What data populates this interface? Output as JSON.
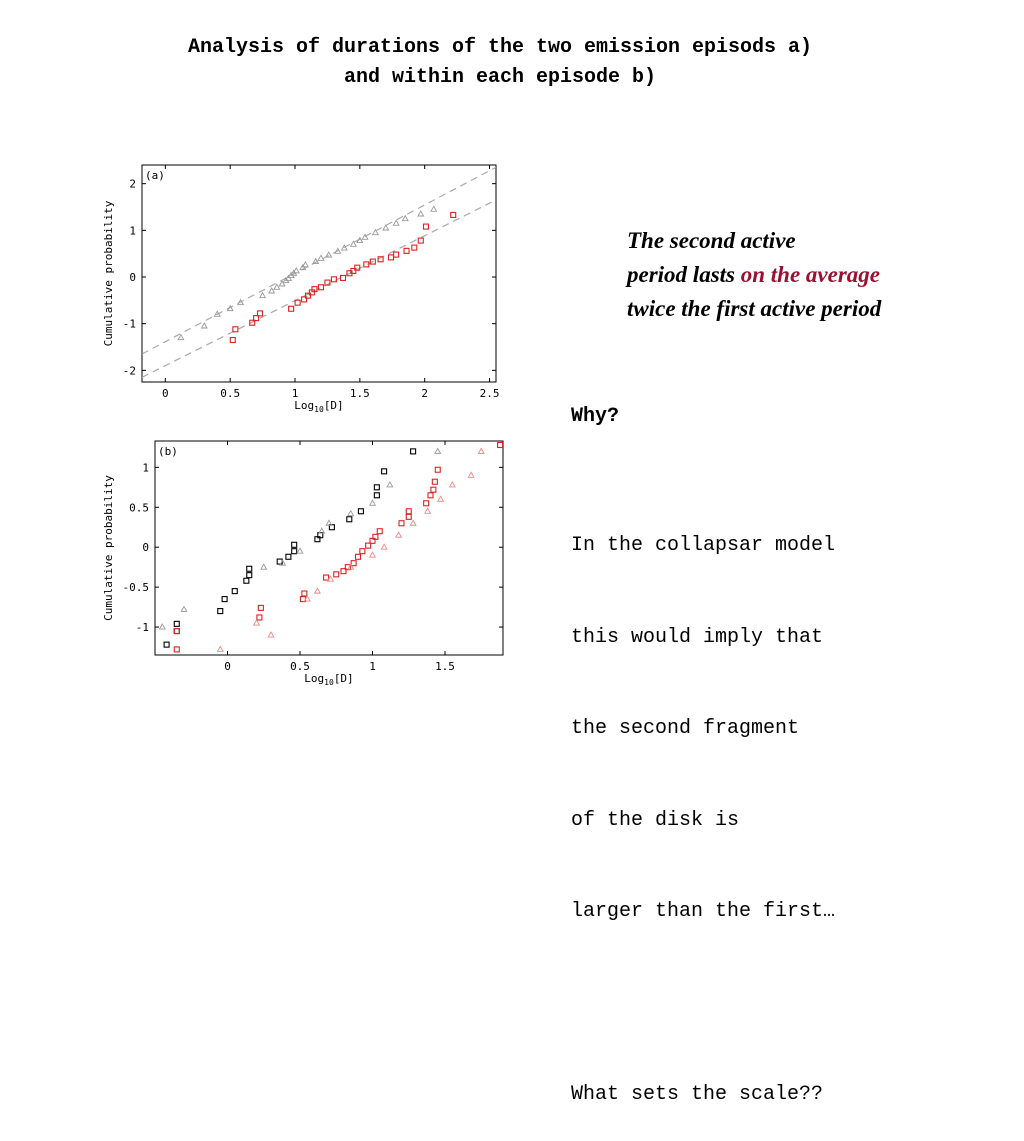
{
  "slide": {
    "title_line1": "Analysis of durations of the two emission episods a)",
    "title_line2": "and within each episode b)",
    "note_line1": "The second active",
    "note_line2_a": "period lasts ",
    "note_line2_b": "on the average",
    "note_line3": "twice the first active period",
    "why": "Why?",
    "para_lines": [
      "In the collapsar model",
      "this would imply that",
      "the second fragment",
      "of the disk is",
      "larger than the first…",
      "",
      "What sets the scale??"
    ]
  },
  "colors": {
    "red": "#dd2222",
    "pink": "#ee8888",
    "black": "#000000",
    "gray": "#999999",
    "dashed": "#aaaaaa",
    "highlight": "#9b1030"
  },
  "chart_data": [
    {
      "type": "scatter",
      "panel_label": "(a)",
      "xlabel": "Log10[D]",
      "ylabel": "Cumulative probability",
      "xlim": [
        -0.18,
        2.55
      ],
      "ylim": [
        -2.25,
        2.4
      ],
      "xticks": [
        0,
        0.5,
        1,
        1.5,
        2,
        2.5
      ],
      "xtick_labels": [
        "0",
        "0.5",
        "1",
        "1.5",
        "2",
        "2.5"
      ],
      "yticks": [
        -2,
        -1,
        0,
        1,
        2
      ],
      "ytick_labels": [
        "-2",
        "-1",
        "0",
        "1",
        "2"
      ],
      "grid": false,
      "series": [
        {
          "marker": "triangle",
          "color": "gray",
          "x": [
            0.12,
            0.3,
            0.4,
            0.5,
            0.58,
            0.75,
            0.82,
            0.86,
            0.9,
            0.93,
            0.95,
            0.97,
            0.99,
            1.01,
            1.06,
            1.08,
            1.16,
            1.2,
            1.26,
            1.33,
            1.38,
            1.45,
            1.5,
            1.54,
            1.62,
            1.7,
            1.78,
            1.85,
            1.97,
            2.07
          ],
          "y": [
            -1.3,
            -1.05,
            -0.8,
            -0.68,
            -0.55,
            -0.4,
            -0.3,
            -0.22,
            -0.15,
            -0.08,
            -0.03,
            0.03,
            0.08,
            0.13,
            0.2,
            0.26,
            0.33,
            0.4,
            0.47,
            0.55,
            0.62,
            0.7,
            0.78,
            0.85,
            0.95,
            1.05,
            1.15,
            1.25,
            1.35,
            1.45
          ]
        },
        {
          "marker": "square",
          "color": "red",
          "x": [
            0.52,
            0.54,
            0.67,
            0.7,
            0.73,
            0.97,
            1.02,
            1.07,
            1.1,
            1.13,
            1.15,
            1.2,
            1.25,
            1.3,
            1.37,
            1.42,
            1.45,
            1.48,
            1.55,
            1.6,
            1.66,
            1.74,
            1.78,
            1.86,
            1.92,
            1.97,
            2.01,
            2.22
          ],
          "y": [
            -1.35,
            -1.12,
            -0.98,
            -0.88,
            -0.78,
            -0.68,
            -0.55,
            -0.48,
            -0.4,
            -0.33,
            -0.26,
            -0.22,
            -0.12,
            -0.05,
            -0.02,
            0.08,
            0.13,
            0.2,
            0.27,
            0.33,
            0.38,
            0.42,
            0.48,
            0.56,
            0.63,
            0.78,
            1.08,
            1.33
          ]
        }
      ],
      "fits": [
        {
          "style": "dashed",
          "x": [
            -0.18,
            2.55
          ],
          "y": [
            -1.65,
            2.35
          ]
        },
        {
          "style": "dashed",
          "x": [
            -0.18,
            2.55
          ],
          "y": [
            -2.15,
            1.65
          ]
        }
      ]
    },
    {
      "type": "scatter",
      "panel_label": "(b)",
      "xlabel": "Log10[D]",
      "ylabel": "Cumulative probability",
      "xlim": [
        -0.5,
        1.9
      ],
      "ylim": [
        -1.35,
        1.33
      ],
      "xticks": [
        0,
        0.5,
        1,
        1.5
      ],
      "xtick_labels": [
        "0",
        "0.5",
        "1",
        "1.5"
      ],
      "yticks": [
        -1,
        -0.5,
        0,
        0.5,
        1
      ],
      "ytick_labels": [
        "-1",
        "-0.5",
        "0",
        "0.5",
        "1"
      ],
      "grid": false,
      "series": [
        {
          "marker": "square",
          "color": "black",
          "x": [
            -0.42,
            -0.35,
            -0.35,
            -0.05,
            -0.02,
            0.05,
            0.13,
            0.15,
            0.15,
            0.36,
            0.42,
            0.46,
            0.46,
            0.62,
            0.64,
            0.72,
            0.84,
            0.92,
            1.03,
            1.03,
            1.08,
            1.28
          ],
          "y": [
            -1.22,
            -1.05,
            -0.96,
            -0.8,
            -0.65,
            -0.55,
            -0.42,
            -0.35,
            -0.27,
            -0.18,
            -0.12,
            -0.05,
            0.03,
            0.1,
            0.15,
            0.25,
            0.35,
            0.45,
            0.65,
            0.75,
            0.95,
            1.2
          ]
        },
        {
          "marker": "triangle",
          "color": "gray",
          "x": [
            -0.45,
            -0.3,
            0.25,
            0.38,
            0.5,
            0.65,
            0.7,
            0.85,
            1.0,
            1.12,
            1.45
          ],
          "y": [
            -1.0,
            -0.78,
            -0.25,
            -0.2,
            -0.05,
            0.2,
            0.3,
            0.42,
            0.55,
            0.78,
            1.2
          ]
        },
        {
          "marker": "square",
          "color": "red",
          "x": [
            -0.35,
            -0.35,
            0.22,
            0.23,
            0.52,
            0.53,
            0.68,
            0.75,
            0.8,
            0.83,
            0.87,
            0.9,
            0.93,
            0.97,
            1.0,
            1.02,
            1.05,
            1.2,
            1.25,
            1.25,
            1.37,
            1.4,
            1.42,
            1.43,
            1.45,
            1.88
          ],
          "y": [
            -1.28,
            -1.05,
            -0.88,
            -0.76,
            -0.65,
            -0.58,
            -0.38,
            -0.34,
            -0.3,
            -0.25,
            -0.2,
            -0.12,
            -0.05,
            0.02,
            0.08,
            0.13,
            0.2,
            0.3,
            0.38,
            0.45,
            0.55,
            0.65,
            0.72,
            0.82,
            0.97,
            1.28
          ]
        },
        {
          "marker": "triangle",
          "color": "pink",
          "x": [
            -0.05,
            0.2,
            0.3,
            0.55,
            0.62,
            0.71,
            0.85,
            1.0,
            1.08,
            1.18,
            1.28,
            1.38,
            1.47,
            1.55,
            1.68,
            1.75
          ],
          "y": [
            -1.28,
            -0.95,
            -1.1,
            -0.65,
            -0.55,
            -0.4,
            -0.25,
            -0.1,
            0.0,
            0.15,
            0.3,
            0.45,
            0.6,
            0.78,
            0.9,
            1.2
          ]
        }
      ],
      "fits": []
    }
  ]
}
